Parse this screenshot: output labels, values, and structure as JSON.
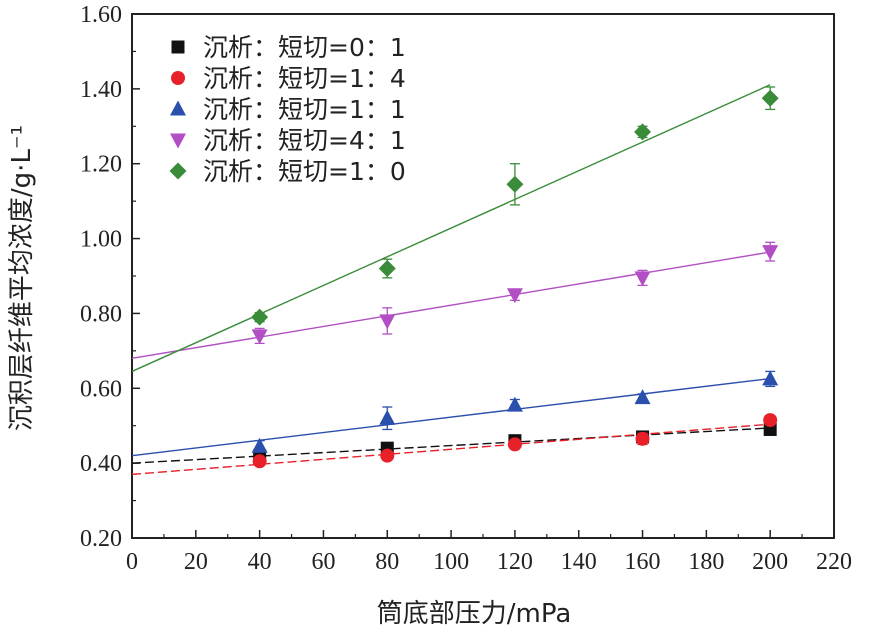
{
  "chart_data": {
    "type": "scatter",
    "title": "",
    "xlabel": "筒底部压力/mPa",
    "ylabel": "沉积层纤维平均浓度/g·L⁻¹",
    "xlim": [
      0,
      220
    ],
    "ylim": [
      0.2,
      1.6
    ],
    "x_ticks": [
      0,
      20,
      40,
      60,
      80,
      100,
      120,
      140,
      160,
      180,
      200,
      220
    ],
    "x_tick_labels": [
      "0",
      "20",
      "40",
      "60",
      "80",
      "100",
      "120",
      "140",
      "160",
      "180",
      "200",
      "220"
    ],
    "y_ticks": [
      0.2,
      0.4,
      0.6,
      0.8,
      1.0,
      1.2,
      1.4,
      1.6
    ],
    "y_tick_labels": [
      "0.20",
      "0.40",
      "0.60",
      "0.80",
      "1.00",
      "1.20",
      "1.40",
      "1.60"
    ],
    "grid": false,
    "legend_position": "top-left",
    "series": [
      {
        "name": "沉析：短切=0：1",
        "marker": "square",
        "color": "#111111",
        "line_style": "dashed",
        "x": [
          40,
          80,
          120,
          160,
          200
        ],
        "y": [
          0.42,
          0.44,
          0.46,
          0.47,
          0.49
        ],
        "error": [
          0.005,
          0.005,
          0.005,
          0.005,
          0.005
        ],
        "fit": {
          "intercept": 0.4,
          "slope": 0.00047
        }
      },
      {
        "name": "沉析：短切=1：4",
        "marker": "circle",
        "color": "#e8202a",
        "line_style": "dashed",
        "x": [
          40,
          80,
          120,
          160,
          200
        ],
        "y": [
          0.405,
          0.42,
          0.45,
          0.465,
          0.515
        ],
        "error": [
          0.01,
          0.01,
          0.012,
          0.015,
          0.012
        ],
        "fit": {
          "intercept": 0.37,
          "slope": 0.00067
        }
      },
      {
        "name": "沉析：短切=1：1",
        "marker": "triangle-up",
        "color": "#2b4fad",
        "line_style": "solid",
        "x": [
          40,
          80,
          120,
          160,
          200
        ],
        "y": [
          0.445,
          0.52,
          0.555,
          0.575,
          0.625
        ],
        "error": [
          0.015,
          0.03,
          0.015,
          0.01,
          0.02
        ],
        "fit": {
          "intercept": 0.42,
          "slope": 0.00103
        }
      },
      {
        "name": "沉析：短切=4：1",
        "marker": "triangle-down",
        "color": "#b24fc4",
        "line_style": "solid",
        "x": [
          40,
          80,
          120,
          160,
          200
        ],
        "y": [
          0.74,
          0.78,
          0.85,
          0.895,
          0.965
        ],
        "error": [
          0.02,
          0.035,
          0.015,
          0.02,
          0.025
        ],
        "fit": {
          "intercept": 0.68,
          "slope": 0.00142
        }
      },
      {
        "name": "沉析：短切=1：0",
        "marker": "diamond",
        "color": "#3a8c3a",
        "line_style": "solid",
        "x": [
          40,
          80,
          120,
          160,
          200
        ],
        "y": [
          0.79,
          0.92,
          1.145,
          1.285,
          1.375
        ],
        "error": [
          0.012,
          0.025,
          0.055,
          0.015,
          0.03
        ],
        "fit": {
          "intercept": 0.645,
          "slope": 0.00383
        }
      }
    ]
  }
}
